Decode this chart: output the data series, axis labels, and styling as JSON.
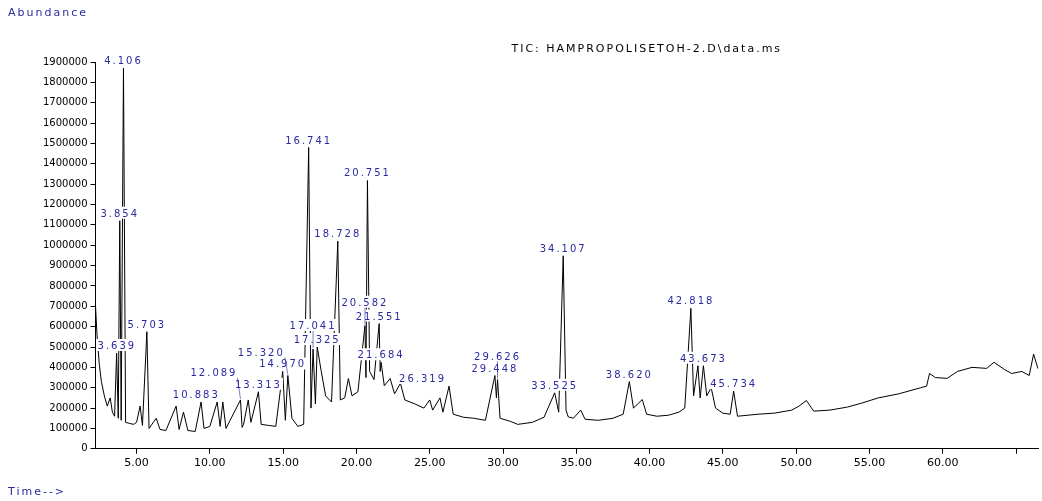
{
  "chart_data": {
    "type": "line",
    "title": "TIC: HAMPROPOLISETOH-2.D\\data.ms",
    "ylabel": "Abundance",
    "xlabel": "Time-->",
    "color": "#000000",
    "x": [
      2.2,
      2.3,
      2.45,
      2.6,
      2.8,
      3.0,
      3.2,
      3.35,
      3.5,
      3.639,
      3.75,
      3.854,
      3.95,
      4.106,
      4.25,
      4.5,
      4.8,
      5.0,
      5.24,
      5.4,
      5.703,
      5.85,
      6.34,
      6.6,
      7.0,
      7.7,
      7.9,
      8.2,
      8.5,
      9.0,
      9.4,
      9.6,
      10.0,
      10.5,
      10.7,
      10.883,
      11.1,
      12.089,
      12.2,
      12.3,
      12.62,
      12.8,
      13.313,
      13.5,
      14.0,
      14.5,
      14.97,
      15.15,
      15.32,
      15.6,
      16.0,
      16.4,
      16.741,
      16.9,
      17.041,
      17.2,
      17.325,
      17.6,
      17.9,
      18.3,
      18.728,
      18.9,
      19.2,
      19.45,
      19.7,
      20.1,
      20.582,
      20.65,
      20.751,
      20.9,
      21.2,
      21.551,
      21.62,
      21.684,
      21.9,
      22.3,
      22.6,
      23.0,
      23.3,
      24.0,
      24.6,
      25.0,
      25.2,
      25.7,
      25.9,
      26.319,
      26.6,
      27.3,
      28.0,
      28.8,
      29.448,
      29.55,
      29.626,
      29.8,
      30.5,
      31.0,
      32.0,
      32.8,
      33.525,
      33.8,
      34.107,
      34.3,
      34.45,
      34.8,
      35.3,
      35.6,
      36.5,
      37.5,
      38.2,
      38.62,
      38.9,
      39.5,
      39.8,
      40.5,
      41.3,
      42.0,
      42.4,
      42.818,
      43.0,
      43.3,
      43.45,
      43.673,
      43.9,
      44.2,
      44.5,
      45.0,
      45.5,
      45.734,
      46.0,
      47.4,
      48.5,
      49.7,
      50.2,
      50.7,
      51.2,
      52.3,
      53.5,
      54.5,
      55.6,
      57.0,
      58.5,
      58.9,
      59.1,
      59.5,
      60.3,
      61.0,
      62.0,
      63.0,
      63.5,
      64.2,
      64.7,
      65.4,
      65.9,
      66.2,
      66.5
    ],
    "values": [
      700000,
      560000,
      420000,
      330000,
      260000,
      210000,
      250000,
      180000,
      160000,
      470000,
      150000,
      1120000,
      140000,
      1870000,
      130000,
      125000,
      120000,
      130000,
      210000,
      115000,
      575000,
      100000,
      150000,
      95000,
      90000,
      210000,
      95000,
      180000,
      90000,
      85000,
      230000,
      100000,
      110000,
      230000,
      110000,
      230000,
      100000,
      240000,
      105000,
      120000,
      240000,
      130000,
      280000,
      120000,
      115000,
      110000,
      380000,
      140000,
      360000,
      150000,
      110000,
      120000,
      1480000,
      200000,
      490000,
      220000,
      500000,
      380000,
      260000,
      230000,
      1020000,
      240000,
      250000,
      345000,
      260000,
      280000,
      605000,
      350000,
      1318000,
      380000,
      340000,
      615000,
      380000,
      425000,
      310000,
      345000,
      270000,
      322000,
      240000,
      220000,
      200000,
      240000,
      190000,
      250000,
      180000,
      308000,
      170000,
      155000,
      150000,
      140000,
      360000,
      250000,
      340000,
      150000,
      135000,
      120000,
      130000,
      155000,
      275000,
      180000,
      948000,
      190000,
      157000,
      150000,
      190000,
      145000,
      140000,
      150000,
      170000,
      330000,
      200000,
      242000,
      170000,
      160000,
      165000,
      180000,
      200000,
      690000,
      260000,
      408000,
      250000,
      408000,
      260000,
      300000,
      200000,
      175000,
      170000,
      283000,
      160000,
      170000,
      175000,
      190000,
      210000,
      237000,
      185000,
      190000,
      205000,
      225000,
      250000,
      270000,
      300000,
      308000,
      370000,
      350000,
      346000,
      380000,
      400000,
      395000,
      425000,
      390000,
      370000,
      380000,
      360000,
      465000,
      393000
    ],
    "xlim": [
      2.2,
      66.5
    ],
    "xticks": [
      {
        "value": 5,
        "label": "5.00"
      },
      {
        "value": 10,
        "label": "10.00"
      },
      {
        "value": 15,
        "label": "15.00"
      },
      {
        "value": 20,
        "label": "20.00"
      },
      {
        "value": 25,
        "label": "25.00"
      },
      {
        "value": 30,
        "label": "30.00"
      },
      {
        "value": 35,
        "label": "35.00"
      },
      {
        "value": 40,
        "label": "40.00"
      },
      {
        "value": 45,
        "label": "45.00"
      },
      {
        "value": 50,
        "label": "50.00"
      },
      {
        "value": 55,
        "label": "55.00"
      },
      {
        "value": 60,
        "label": "60.00"
      },
      {
        "value": 65,
        "label": null
      }
    ],
    "ylim": [
      0,
      1900000
    ],
    "yticks": [
      0,
      100000,
      200000,
      300000,
      400000,
      500000,
      600000,
      700000,
      800000,
      900000,
      1000000,
      1100000,
      1200000,
      1300000,
      1400000,
      1500000,
      1600000,
      1700000,
      1800000,
      1900000
    ],
    "annotations": [
      {
        "text": "4.106",
        "x": 4.106,
        "y": 1870000
      },
      {
        "text": "3.854",
        "x": 3.854,
        "y": 1120000
      },
      {
        "text": "5.703",
        "x": 5.703,
        "y": 575000
      },
      {
        "text": "3.639",
        "x": 3.639,
        "y": 470000
      },
      {
        "text": "16.741",
        "x": 16.741,
        "y": 1480000
      },
      {
        "text": "20.751",
        "x": 20.751,
        "y": 1318000
      },
      {
        "text": "18.728",
        "x": 18.728,
        "y": 1020000
      },
      {
        "text": "34.107",
        "x": 34.107,
        "y": 948000
      },
      {
        "text": "42.818",
        "x": 42.818,
        "y": 690000
      },
      {
        "text": "21.551",
        "x": 21.551,
        "y": 615000
      },
      {
        "text": "20.582",
        "x": 20.582,
        "y": 605000
      },
      {
        "text": "17.325",
        "x": 17.325,
        "y": 500000
      },
      {
        "text": "17.041",
        "x": 17.041,
        "y": 490000
      },
      {
        "text": "21.684",
        "x": 21.684,
        "y": 425000
      },
      {
        "text": "43.673",
        "x": 43.673,
        "y": 408000
      },
      {
        "text": "14.970",
        "x": 14.97,
        "y": 380000
      },
      {
        "text": "15.320",
        "x": 15.32,
        "y": 360000
      },
      {
        "text": "29.448",
        "x": 29.448,
        "y": 360000
      },
      {
        "text": "29.626",
        "x": 29.626,
        "y": 340000
      },
      {
        "text": "38.620",
        "x": 38.62,
        "y": 330000
      },
      {
        "text": "26.319",
        "x": 26.319,
        "y": 308000
      },
      {
        "text": "45.734",
        "x": 45.734,
        "y": 283000
      },
      {
        "text": "13.313",
        "x": 13.313,
        "y": 280000
      },
      {
        "text": "33.525",
        "x": 33.525,
        "y": 275000
      },
      {
        "text": "12.089",
        "x": 12.089,
        "y": 240000
      },
      {
        "text": "10.883",
        "x": 10.883,
        "y": 230000
      }
    ]
  }
}
